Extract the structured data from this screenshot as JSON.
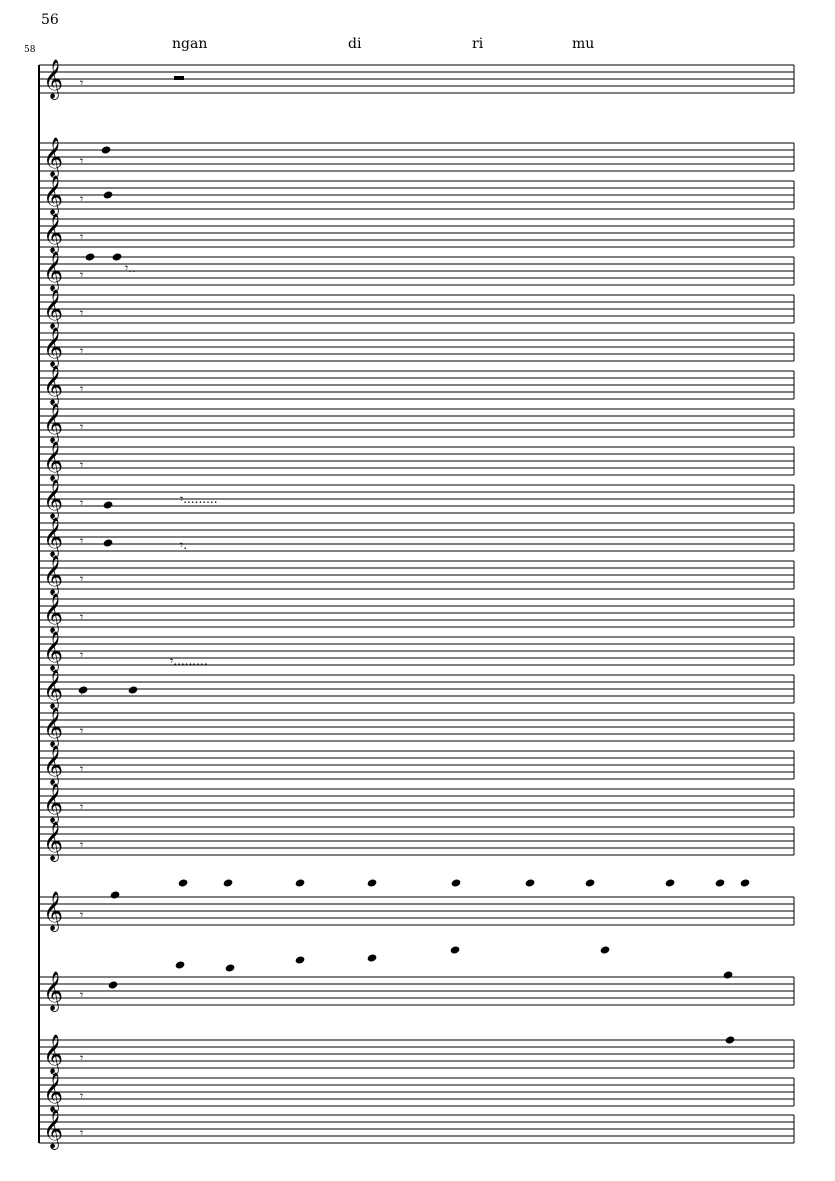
{
  "score": {
    "page_measure_number": "56",
    "system_bar_number": "58",
    "lyrics": [
      "ngan",
      "di",
      "ri",
      "mu"
    ],
    "staff_count": 25,
    "clef": "treble-clef-icon"
  }
}
